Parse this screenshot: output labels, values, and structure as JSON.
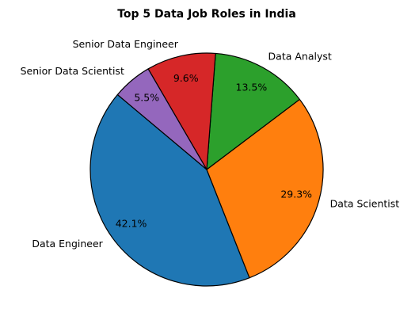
{
  "chart_data": {
    "type": "pie",
    "title": "Top 5 Data Job Roles in India",
    "start_angle_deg": 140,
    "direction": "counterclockwise",
    "slices": [
      {
        "label": "Data Engineer",
        "value": 42.1,
        "pct_text": "42.1%",
        "color": "#1f77b4"
      },
      {
        "label": "Data Scientist",
        "value": 29.3,
        "pct_text": "29.3%",
        "color": "#ff7f0e"
      },
      {
        "label": "Data Analyst",
        "value": 13.5,
        "pct_text": "13.5%",
        "color": "#2ca02c"
      },
      {
        "label": "Senior Data Engineer",
        "value": 9.6,
        "pct_text": "9.6%",
        "color": "#d62728"
      },
      {
        "label": "Senior Data Scientist",
        "value": 5.5,
        "pct_text": "5.5%",
        "color": "#9467bd"
      }
    ]
  }
}
